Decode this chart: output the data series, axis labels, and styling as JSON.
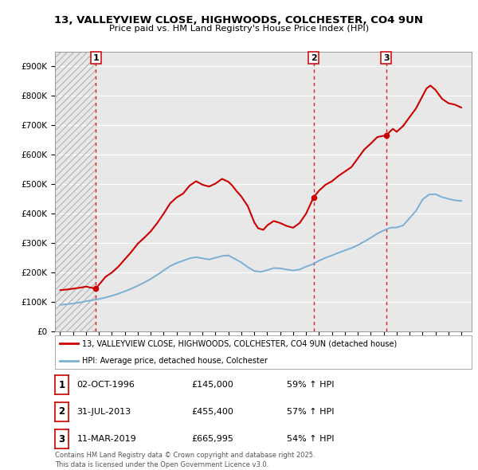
{
  "title_line1": "13, VALLEYVIEW CLOSE, HIGHWOODS, COLCHESTER, CO4 9UN",
  "title_line2": "Price paid vs. HM Land Registry's House Price Index (HPI)",
  "legend_label1": "13, VALLEYVIEW CLOSE, HIGHWOODS, COLCHESTER, CO4 9UN (detached house)",
  "legend_label2": "HPI: Average price, detached house, Colchester",
  "footer": "Contains HM Land Registry data © Crown copyright and database right 2025.\nThis data is licensed under the Open Government Licence v3.0.",
  "sale_points": [
    {
      "label": "1",
      "date_num": 1996.75,
      "price": 145000,
      "date_str": "02-OCT-1996",
      "price_str": "£145,000",
      "hpi_str": "59% ↑ HPI"
    },
    {
      "label": "2",
      "date_num": 2013.58,
      "price": 455400,
      "date_str": "31-JUL-2013",
      "price_str": "£455,400",
      "hpi_str": "57% ↑ HPI"
    },
    {
      "label": "3",
      "date_num": 2019.19,
      "price": 665995,
      "date_str": "11-MAR-2019",
      "price_str": "£665,995",
      "hpi_str": "54% ↑ HPI"
    }
  ],
  "red_line_color": "#cc0000",
  "blue_line_color": "#7bafd4",
  "background_color": "#ffffff",
  "plot_bg_color": "#e8e8e8",
  "grid_color": "#ffffff",
  "ylim": [
    0,
    950000
  ],
  "xlim_start": 1993.6,
  "xlim_end": 2025.8,
  "yticks": [
    0,
    100000,
    200000,
    300000,
    400000,
    500000,
    600000,
    700000,
    800000,
    900000
  ],
  "ytick_labels": [
    "£0",
    "£100K",
    "£200K",
    "£300K",
    "£400K",
    "£500K",
    "£600K",
    "£700K",
    "£800K",
    "£900K"
  ],
  "red_series_x": [
    1994.0,
    1994.5,
    1995.0,
    1995.5,
    1996.0,
    1996.75,
    1997.5,
    1998.0,
    1998.5,
    1999.0,
    1999.5,
    2000.0,
    2000.5,
    2001.0,
    2001.5,
    2002.0,
    2002.5,
    2003.0,
    2003.5,
    2004.0,
    2004.5,
    2005.0,
    2005.5,
    2006.0,
    2006.5,
    2007.0,
    2007.3,
    2007.6,
    2008.0,
    2008.5,
    2009.0,
    2009.3,
    2009.7,
    2010.0,
    2010.5,
    2011.0,
    2011.5,
    2012.0,
    2012.5,
    2013.0,
    2013.58,
    2014.0,
    2014.5,
    2015.0,
    2015.5,
    2016.0,
    2016.5,
    2017.0,
    2017.5,
    2018.0,
    2018.5,
    2019.19,
    2019.7,
    2020.0,
    2020.5,
    2021.0,
    2021.5,
    2022.0,
    2022.3,
    2022.6,
    2023.0,
    2023.5,
    2024.0,
    2024.5,
    2025.0
  ],
  "red_series_y": [
    140000,
    142000,
    145000,
    148000,
    152000,
    145000,
    185000,
    200000,
    220000,
    245000,
    270000,
    298000,
    318000,
    340000,
    368000,
    400000,
    435000,
    455000,
    468000,
    495000,
    510000,
    498000,
    492000,
    502000,
    518000,
    508000,
    495000,
    478000,
    458000,
    425000,
    370000,
    350000,
    345000,
    360000,
    375000,
    368000,
    358000,
    352000,
    368000,
    400000,
    455400,
    478000,
    498000,
    510000,
    528000,
    543000,
    558000,
    588000,
    618000,
    638000,
    660000,
    665995,
    688000,
    678000,
    698000,
    728000,
    758000,
    800000,
    825000,
    835000,
    820000,
    790000,
    775000,
    770000,
    760000
  ],
  "blue_series_x": [
    1994.0,
    1994.5,
    1995.0,
    1995.5,
    1996.0,
    1996.5,
    1997.0,
    1997.5,
    1998.0,
    1998.5,
    1999.0,
    1999.5,
    2000.0,
    2000.5,
    2001.0,
    2001.5,
    2002.0,
    2002.5,
    2003.0,
    2003.5,
    2004.0,
    2004.5,
    2005.0,
    2005.5,
    2006.0,
    2006.5,
    2007.0,
    2007.5,
    2008.0,
    2008.5,
    2009.0,
    2009.5,
    2010.0,
    2010.5,
    2011.0,
    2011.5,
    2012.0,
    2012.5,
    2013.0,
    2013.5,
    2014.0,
    2014.5,
    2015.0,
    2015.5,
    2016.0,
    2016.5,
    2017.0,
    2017.5,
    2018.0,
    2018.5,
    2019.0,
    2019.5,
    2020.0,
    2020.5,
    2021.0,
    2021.5,
    2022.0,
    2022.5,
    2023.0,
    2023.5,
    2024.0,
    2024.5,
    2025.0
  ],
  "blue_series_y": [
    90000,
    92000,
    95000,
    98000,
    102000,
    106000,
    110000,
    115000,
    121000,
    128000,
    136000,
    145000,
    155000,
    166000,
    178000,
    192000,
    207000,
    222000,
    232000,
    240000,
    248000,
    252000,
    248000,
    244000,
    250000,
    256000,
    258000,
    246000,
    234000,
    218000,
    205000,
    202000,
    208000,
    215000,
    214000,
    210000,
    207000,
    210000,
    220000,
    228000,
    240000,
    250000,
    258000,
    267000,
    275000,
    283000,
    293000,
    305000,
    318000,
    332000,
    343000,
    352000,
    353000,
    360000,
    385000,
    410000,
    448000,
    465000,
    466000,
    456000,
    450000,
    445000,
    443000
  ]
}
